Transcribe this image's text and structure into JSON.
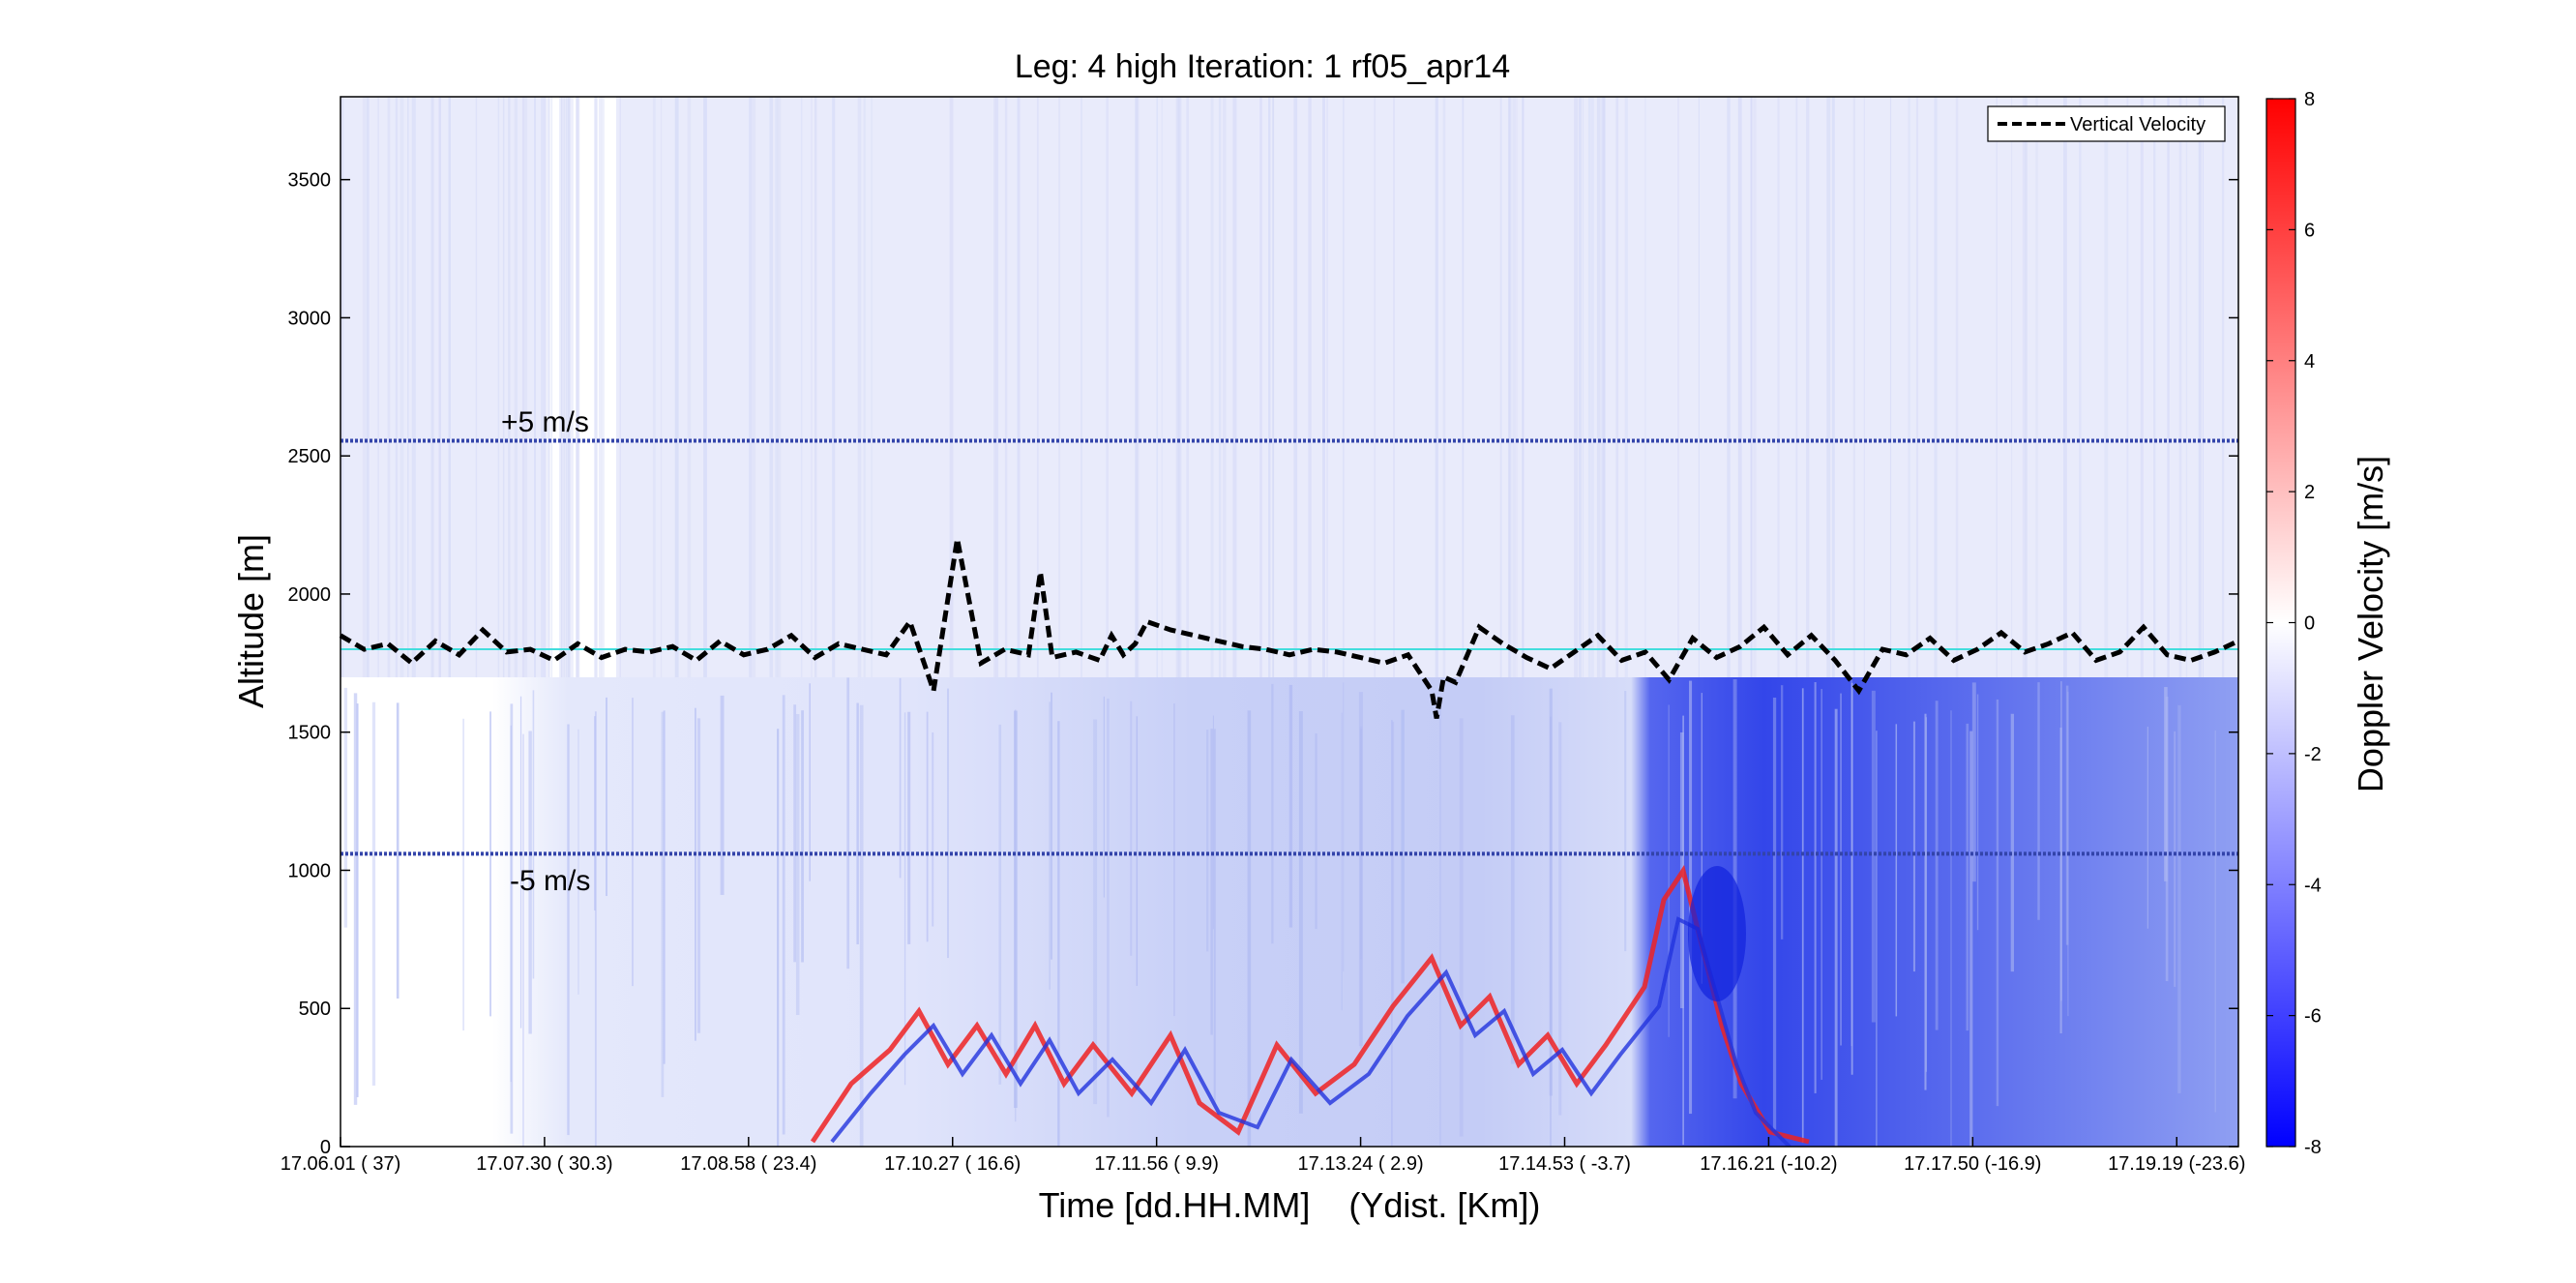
{
  "chart_data": {
    "type": "heatmap",
    "title": "Leg: 4 high Iteration: 1  rf05_apr14",
    "xlabel": "Time [dd.HH.MM]    (Ydist. [Km])",
    "ylabel": "Altitude [m]",
    "colorbar_label": "Doppler Velocity [m/s]",
    "xlim": [
      0,
      8
    ],
    "ylim": [
      0,
      3800
    ],
    "x_ticks": [
      {
        "time": "17.06.01",
        "dist": "(   37)"
      },
      {
        "time": "17.07.30",
        "dist": "( 30.3)"
      },
      {
        "time": "17.08.58",
        "dist": "( 23.4)"
      },
      {
        "time": "17.10.27",
        "dist": "( 16.6)"
      },
      {
        "time": "17.11.56",
        "dist": "(   9.9)"
      },
      {
        "time": "17.13.24",
        "dist": "(   2.9)"
      },
      {
        "time": "17.14.53",
        "dist": "( -3.7)"
      },
      {
        "time": "17.16.21",
        "dist": "(-10.2)"
      },
      {
        "time": "17.17.50",
        "dist": "(-16.9)"
      },
      {
        "time": "17.19.19",
        "dist": "(-23.6)"
      }
    ],
    "y_ticks": [
      0,
      500,
      1000,
      1500,
      2000,
      2500,
      3000,
      3500
    ],
    "y_tick_labels": [
      "0",
      "500",
      "1000",
      "1500",
      "2000",
      "2500",
      "3000",
      "3500"
    ],
    "colorbar": {
      "range": [
        -8,
        8
      ],
      "ticks": [
        -8,
        -6,
        -4,
        -2,
        0,
        2,
        4,
        6,
        8
      ],
      "tick_labels": [
        "-8",
        "-6",
        "-4",
        "-2",
        "0",
        "2",
        "4",
        "6",
        "8"
      ],
      "colors": {
        "min": "#0000ff",
        "mid": "#ffffff",
        "max": "#ff0000"
      }
    },
    "legend": {
      "placement": "top-right",
      "entries": [
        "Vertical Velocity"
      ]
    },
    "reference_lines": [
      {
        "label": "+5 m/s",
        "altitude": 2555,
        "color": "#3344aa"
      },
      {
        "label": "-5 m/s",
        "altitude": 1060,
        "color": "#3344aa"
      },
      {
        "label": "",
        "altitude": 1800,
        "color": "#44dddd"
      }
    ],
    "series": [
      {
        "name": "Vertical Velocity",
        "style": "dashed",
        "color": "#000000",
        "x": [
          0.0,
          0.1,
          0.2,
          0.3,
          0.4,
          0.5,
          0.6,
          0.7,
          0.8,
          0.9,
          1.0,
          1.1,
          1.2,
          1.3,
          1.4,
          1.5,
          1.6,
          1.7,
          1.8,
          1.9,
          2.0,
          2.1,
          2.2,
          2.3,
          2.4,
          2.5,
          2.6,
          2.7,
          2.8,
          2.85,
          2.9,
          2.95,
          3.0,
          3.1,
          3.2,
          3.25,
          3.3,
          3.35,
          3.4,
          3.5,
          3.6,
          3.7,
          3.8,
          3.9,
          4.0,
          4.1,
          4.2,
          4.3,
          4.4,
          4.5,
          4.6,
          4.62,
          4.65,
          4.7,
          4.8,
          4.9,
          5.0,
          5.1,
          5.2,
          5.3,
          5.4,
          5.5,
          5.6,
          5.7,
          5.8,
          5.9,
          6.0,
          6.1,
          6.2,
          6.3,
          6.4,
          6.5,
          6.6,
          6.7,
          6.8,
          6.9,
          7.0,
          7.1,
          7.2,
          7.3,
          7.4,
          7.5,
          7.6,
          7.7,
          7.8,
          7.9,
          8.0
        ],
        "y": [
          1850,
          1800,
          1820,
          1750,
          1830,
          1780,
          1870,
          1790,
          1800,
          1760,
          1820,
          1770,
          1800,
          1790,
          1810,
          1760,
          1830,
          1780,
          1800,
          1850,
          1770,
          1820,
          1800,
          1780,
          1900,
          1650,
          2200,
          1750,
          1800,
          1790,
          1780,
          2080,
          1770,
          1790,
          1760,
          1850,
          1780,
          1820,
          1900,
          1870,
          1850,
          1830,
          1810,
          1800,
          1780,
          1800,
          1790,
          1770,
          1750,
          1780,
          1650,
          1550,
          1700,
          1680,
          1880,
          1820,
          1770,
          1730,
          1790,
          1850,
          1760,
          1790,
          1690,
          1840,
          1770,
          1810,
          1880,
          1780,
          1850,
          1760,
          1650,
          1800,
          1780,
          1840,
          1760,
          1800,
          1860,
          1790,
          1820,
          1860,
          1760,
          1790,
          1880,
          1780,
          1760,
          1790,
          1830
        ]
      }
    ]
  }
}
